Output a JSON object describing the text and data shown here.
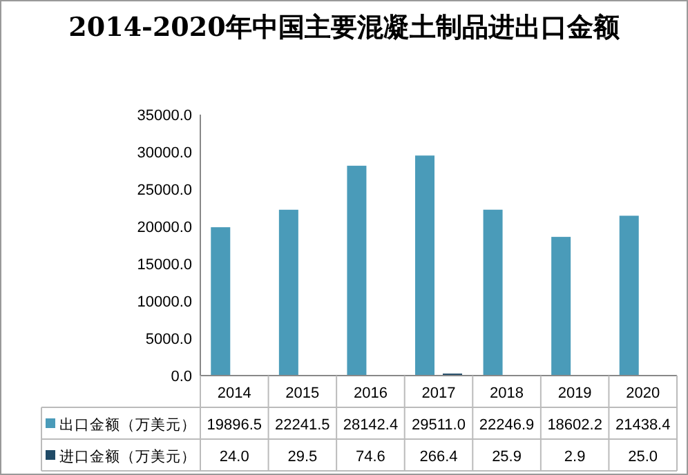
{
  "chart_data": {
    "type": "bar",
    "title": "2014-2020年中国主要混凝土制品进出口金额",
    "categories": [
      "2014",
      "2015",
      "2016",
      "2017",
      "2018",
      "2019",
      "2020"
    ],
    "series": [
      {
        "name": "出口金额（万美元）",
        "color": "#4a9bb9",
        "values": [
          19896.5,
          22241.5,
          28142.4,
          29511.0,
          22246.9,
          18602.2,
          21438.4
        ],
        "value_labels": [
          "19896.5",
          "22241.5",
          "28142.4",
          "29511.0",
          "22246.9",
          "18602.2",
          "21438.4"
        ]
      },
      {
        "name": "进口金额（万美元）",
        "color": "#1f4a66",
        "values": [
          24.0,
          29.5,
          74.6,
          266.4,
          25.9,
          2.9,
          25.0
        ],
        "value_labels": [
          "24.0",
          "29.5",
          "74.6",
          "266.4",
          "25.9",
          "2.9",
          "25.0"
        ]
      }
    ],
    "ylim": [
      0,
      35000
    ],
    "yticks": [
      {
        "value": 0,
        "label": "0.0"
      },
      {
        "value": 5000,
        "label": "5000.0"
      },
      {
        "value": 10000,
        "label": "10000.0"
      },
      {
        "value": 15000,
        "label": "15000.0"
      },
      {
        "value": 20000,
        "label": "20000.0"
      },
      {
        "value": 25000,
        "label": "25000.0"
      },
      {
        "value": 30000,
        "label": "30000.0"
      },
      {
        "value": 35000,
        "label": "35000.0"
      }
    ],
    "legend": "bottom",
    "grid": false
  }
}
